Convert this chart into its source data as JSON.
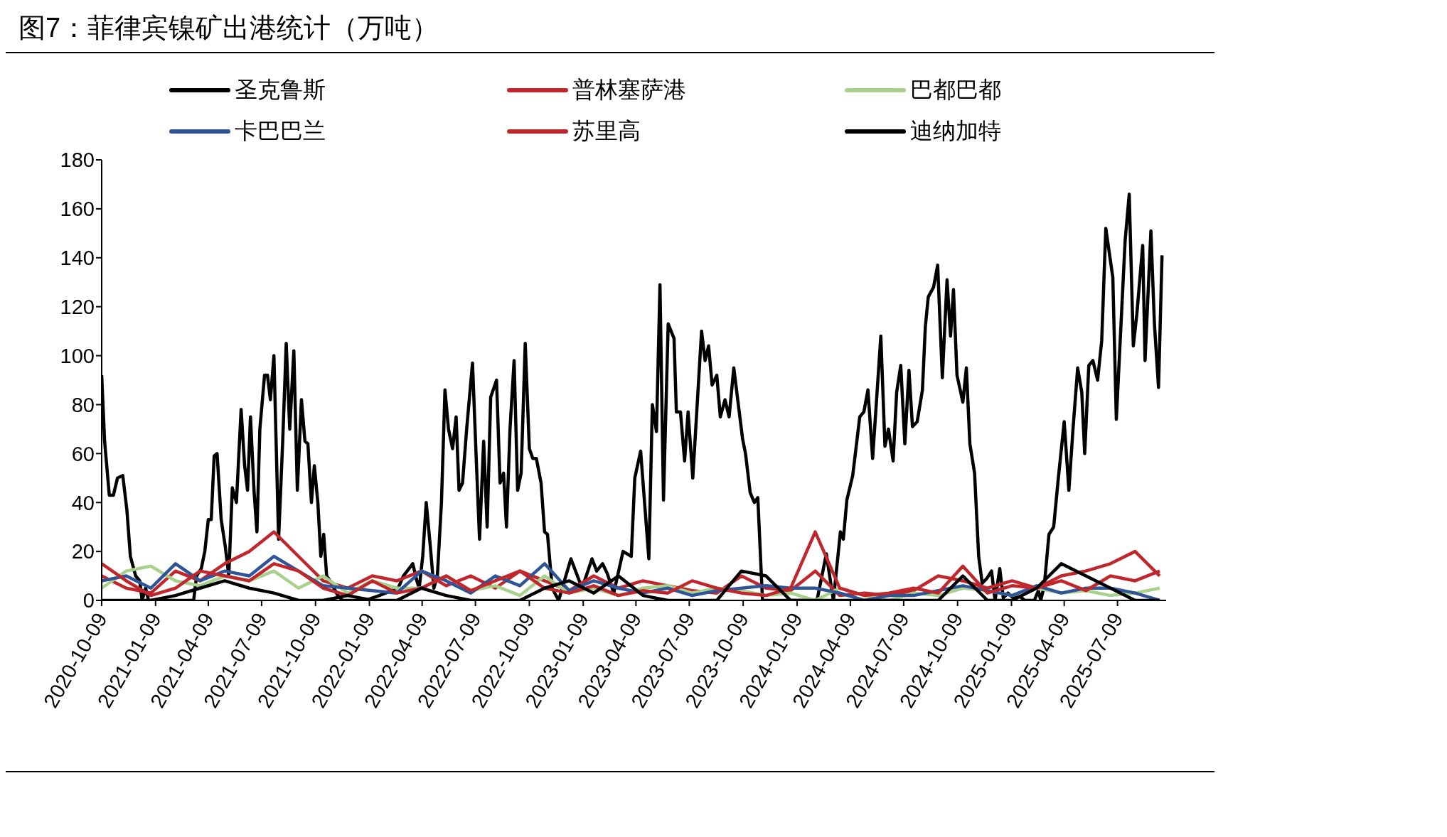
{
  "chart_data": {
    "type": "line",
    "title": "图7：菲律宾镍矿出港统计（万吨）",
    "legend": "top",
    "x": [
      "2020-10-09",
      "2020-11-20",
      "2021-01-01",
      "2021-02-12",
      "2021-03-26",
      "2021-05-07",
      "2021-06-18",
      "2021-07-30",
      "2021-09-10",
      "2021-10-22",
      "2021-12-03",
      "2022-01-14",
      "2022-02-25",
      "2022-04-08",
      "2022-05-20",
      "2022-07-01",
      "2022-08-12",
      "2022-09-23",
      "2022-11-04",
      "2022-12-16",
      "2023-01-27",
      "2023-03-10",
      "2023-04-21",
      "2023-06-02",
      "2023-07-14",
      "2023-08-25",
      "2023-10-06",
      "2023-11-17",
      "2023-12-29",
      "2024-02-09",
      "2024-03-22",
      "2024-05-03",
      "2024-06-14",
      "2024-07-26",
      "2024-09-06",
      "2024-10-18",
      "2024-11-29",
      "2025-01-10",
      "2025-02-21",
      "2025-04-04",
      "2025-05-16",
      "2025-06-27",
      "2025-08-08",
      "2025-09-19"
    ],
    "series": [
      {
        "name": "圣克鲁斯",
        "color": "#000000",
        "x": [
          "2020-10-09",
          "2020-10-14",
          "2020-10-22",
          "2020-10-29",
          "2020-11-05",
          "2020-11-14",
          "2020-11-21",
          "2020-11-27",
          "2020-12-06",
          "2020-12-13",
          "2020-12-17",
          "2020-12-23",
          "2020-12-28",
          "2021-01-20",
          "2021-03-15",
          "2021-03-20",
          "2021-03-28",
          "2021-04-03",
          "2021-04-09",
          "2021-04-14",
          "2021-04-19",
          "2021-04-24",
          "2021-05-01",
          "2021-05-08",
          "2021-05-14",
          "2021-05-20",
          "2021-05-27",
          "2021-06-04",
          "2021-06-10",
          "2021-06-15",
          "2021-06-20",
          "2021-06-26",
          "2021-07-01",
          "2021-07-06",
          "2021-07-14",
          "2021-07-19",
          "2021-07-24",
          "2021-07-30",
          "2021-08-07",
          "2021-08-14",
          "2021-08-20",
          "2021-08-26",
          "2021-09-02",
          "2021-09-08",
          "2021-09-15",
          "2021-09-21",
          "2021-09-26",
          "2021-10-02",
          "2021-10-07",
          "2021-10-13",
          "2021-10-18",
          "2021-10-23",
          "2021-10-28",
          "2021-11-03",
          "2021-11-16",
          "2021-11-24",
          "2022-01-02",
          "2022-01-26",
          "2022-02-27",
          "2022-03-08",
          "2022-03-24",
          "2022-03-31",
          "2022-04-04",
          "2022-04-10",
          "2022-04-16",
          "2022-04-23",
          "2022-04-29",
          "2022-05-05",
          "2022-05-12",
          "2022-05-18",
          "2022-05-24",
          "2022-05-31",
          "2022-06-06",
          "2022-06-11",
          "2022-06-17",
          "2022-06-24",
          "2022-07-04",
          "2022-07-10",
          "2022-07-16",
          "2022-07-23",
          "2022-07-29",
          "2022-08-04",
          "2022-08-14",
          "2022-08-20",
          "2022-08-26",
          "2022-08-31",
          "2022-09-06",
          "2022-09-13",
          "2022-09-19",
          "2022-09-25",
          "2022-10-02",
          "2022-10-09",
          "2022-10-15",
          "2022-10-21",
          "2022-10-29",
          "2022-11-04",
          "2022-11-09",
          "2022-11-17",
          "2022-11-28",
          "2022-12-19",
          "2023-01-07",
          "2023-01-24",
          "2023-02-01",
          "2023-02-11",
          "2023-02-19",
          "2023-03-02",
          "2023-03-18",
          "2023-04-01",
          "2023-04-07",
          "2023-04-17",
          "2023-05-01",
          "2023-05-07",
          "2023-05-14",
          "2023-05-20",
          "2023-05-26",
          "2023-06-03",
          "2023-06-13",
          "2023-06-17",
          "2023-06-24",
          "2023-07-01",
          "2023-07-07",
          "2023-07-15",
          "2023-07-30",
          "2023-08-05",
          "2023-08-11",
          "2023-08-17",
          "2023-08-25",
          "2023-08-31",
          "2023-09-08",
          "2023-09-15",
          "2023-09-23",
          "2023-10-08",
          "2023-10-13",
          "2023-10-21",
          "2023-10-28",
          "2023-11-03",
          "2023-11-11",
          "2023-11-17",
          "2024-02-02",
          "2024-02-12",
          "2024-02-28",
          "2024-03-11",
          "2024-03-23",
          "2024-03-28",
          "2024-04-03",
          "2024-04-13",
          "2024-04-25",
          "2024-05-02",
          "2024-05-09",
          "2024-05-17",
          "2024-05-31",
          "2024-06-07",
          "2024-06-13",
          "2024-06-21",
          "2024-06-27",
          "2024-07-04",
          "2024-07-11",
          "2024-07-18",
          "2024-07-24",
          "2024-08-01",
          "2024-08-10",
          "2024-08-15",
          "2024-08-20",
          "2024-08-29",
          "2024-09-05",
          "2024-09-13",
          "2024-09-21",
          "2024-09-27",
          "2024-10-02",
          "2024-10-08",
          "2024-10-18",
          "2024-10-24",
          "2024-10-30",
          "2024-11-07",
          "2024-11-14",
          "2024-11-20",
          "2024-11-28",
          "2024-12-06",
          "2024-12-12",
          "2024-12-20",
          "2024-12-26",
          "2025-01-03",
          "2025-01-12",
          "2025-01-21",
          "2025-02-01",
          "2025-02-17",
          "2025-02-24",
          "2025-02-28",
          "2025-03-06",
          "2025-03-14",
          "2025-03-22",
          "2025-03-30",
          "2025-04-09",
          "2025-04-17",
          "2025-04-24",
          "2025-05-02",
          "2025-05-09",
          "2025-05-14",
          "2025-05-21",
          "2025-05-28",
          "2025-06-05",
          "2025-06-12",
          "2025-06-19",
          "2025-07-01",
          "2025-07-07",
          "2025-07-22",
          "2025-07-29",
          "2025-08-05",
          "2025-08-11",
          "2025-08-21",
          "2025-08-25",
          "2025-09-04",
          "2025-09-10",
          "2025-09-17",
          "2025-09-23"
        ],
        "values": [
          92,
          65,
          43,
          43,
          50,
          51,
          37,
          18,
          10,
          8,
          0,
          5,
          0,
          0,
          0,
          10,
          13,
          20,
          33,
          33,
          59,
          60,
          33,
          22,
          10,
          46,
          40,
          78,
          55,
          45,
          75,
          45,
          28,
          70,
          92,
          92,
          82,
          100,
          25,
          65,
          105,
          70,
          102,
          45,
          82,
          65,
          64,
          40,
          55,
          40,
          18,
          27,
          10,
          8,
          2,
          0,
          0,
          2,
          5,
          10,
          15,
          8,
          5,
          18,
          40,
          22,
          5,
          10,
          40,
          86,
          70,
          62,
          75,
          45,
          48,
          70,
          97,
          60,
          25,
          65,
          30,
          83,
          90,
          48,
          52,
          30,
          70,
          98,
          45,
          52,
          105,
          62,
          58,
          58,
          48,
          28,
          27,
          5,
          0,
          17,
          5,
          17,
          12,
          15,
          11,
          3,
          20,
          18,
          50,
          61,
          17,
          80,
          69,
          129,
          41,
          113,
          107,
          77,
          77,
          57,
          77,
          50,
          110,
          98,
          104,
          88,
          92,
          75,
          82,
          75,
          95,
          66,
          60,
          44,
          40,
          42,
          0,
          0,
          0,
          0,
          19,
          0,
          28,
          25,
          41,
          51,
          75,
          77,
          86,
          58,
          108,
          63,
          70,
          57,
          85,
          96,
          64,
          94,
          71,
          73,
          86,
          112,
          124,
          128,
          137,
          91,
          131,
          108,
          127,
          92,
          81,
          95,
          64,
          52,
          18,
          7,
          9,
          12,
          0,
          13,
          1,
          3,
          1,
          2,
          0,
          0,
          4,
          0,
          6,
          27,
          30,
          50,
          73,
          45,
          70,
          95,
          85,
          60,
          96,
          98,
          90,
          106,
          152,
          132,
          74,
          147,
          166,
          104,
          117,
          145,
          98,
          151,
          113,
          87,
          141
        ]
      },
      {
        "name": "普林塞萨港",
        "color": "#c0272d",
        "values": [
          10,
          5,
          3,
          12,
          8,
          15,
          20,
          28,
          18,
          8,
          5,
          10,
          8,
          12,
          6,
          10,
          5,
          12,
          8,
          4,
          10,
          5,
          8,
          6,
          4,
          3,
          10,
          5,
          4,
          12,
          2,
          3,
          2,
          4,
          10,
          8,
          5,
          8,
          5,
          10,
          12,
          15,
          20,
          10
        ]
      },
      {
        "name": "巴都巴都",
        "color": "#a9d18e",
        "values": [
          5,
          12,
          14,
          8,
          6,
          10,
          8,
          12,
          5,
          10,
          3,
          8,
          5,
          5,
          10,
          4,
          6,
          2,
          10,
          3,
          5,
          2,
          5,
          6,
          3,
          5,
          4,
          2,
          3,
          0,
          5,
          2,
          0,
          3,
          2,
          5,
          4,
          2,
          5,
          3,
          4,
          2,
          3,
          5
        ]
      },
      {
        "name": "卡巴巴兰",
        "color": "#2f5597",
        "values": [
          8,
          10,
          5,
          15,
          8,
          12,
          10,
          18,
          12,
          6,
          5,
          4,
          3,
          12,
          8,
          3,
          10,
          6,
          15,
          4,
          8,
          5,
          3,
          5,
          2,
          4,
          5,
          6,
          5,
          5,
          3,
          0,
          2,
          2,
          4,
          6,
          4,
          2,
          6,
          3,
          5,
          5,
          3,
          0
        ]
      },
      {
        "name": "苏里高",
        "color": "#c0272d",
        "values": [
          15,
          8,
          2,
          5,
          12,
          10,
          8,
          15,
          12,
          5,
          2,
          8,
          3,
          5,
          10,
          4,
          8,
          12,
          5,
          3,
          6,
          2,
          4,
          3,
          8,
          5,
          3,
          2,
          5,
          28,
          5,
          2,
          3,
          5,
          3,
          14,
          3,
          6,
          5,
          8,
          4,
          10,
          8,
          12
        ]
      },
      {
        "name": "迪纳加特",
        "color": "#000000",
        "values": [
          0,
          0,
          0,
          2,
          5,
          8,
          5,
          3,
          0,
          0,
          2,
          0,
          0,
          5,
          2,
          0,
          0,
          0,
          5,
          8,
          3,
          10,
          2,
          0,
          0,
          0,
          12,
          10,
          0,
          0,
          0,
          0,
          0,
          0,
          0,
          10,
          0,
          0,
          5,
          15,
          10,
          5,
          0,
          0
        ]
      }
    ],
    "xlim": [
      "2020-10-09",
      "2025-09-30"
    ],
    "xticks": [
      "2020-10-09",
      "2021-01-09",
      "2021-04-09",
      "2021-07-09",
      "2021-10-09",
      "2022-01-09",
      "2022-04-09",
      "2022-07-09",
      "2022-10-09",
      "2023-01-09",
      "2023-04-09",
      "2023-07-09",
      "2023-10-09",
      "2024-01-09",
      "2024-04-09",
      "2024-07-09",
      "2024-10-09",
      "2025-01-09",
      "2025-04-09",
      "2025-07-09"
    ],
    "ylim": [
      0,
      180
    ],
    "yticks": [
      0,
      20,
      40,
      60,
      80,
      100,
      120,
      140,
      160,
      180
    ]
  }
}
